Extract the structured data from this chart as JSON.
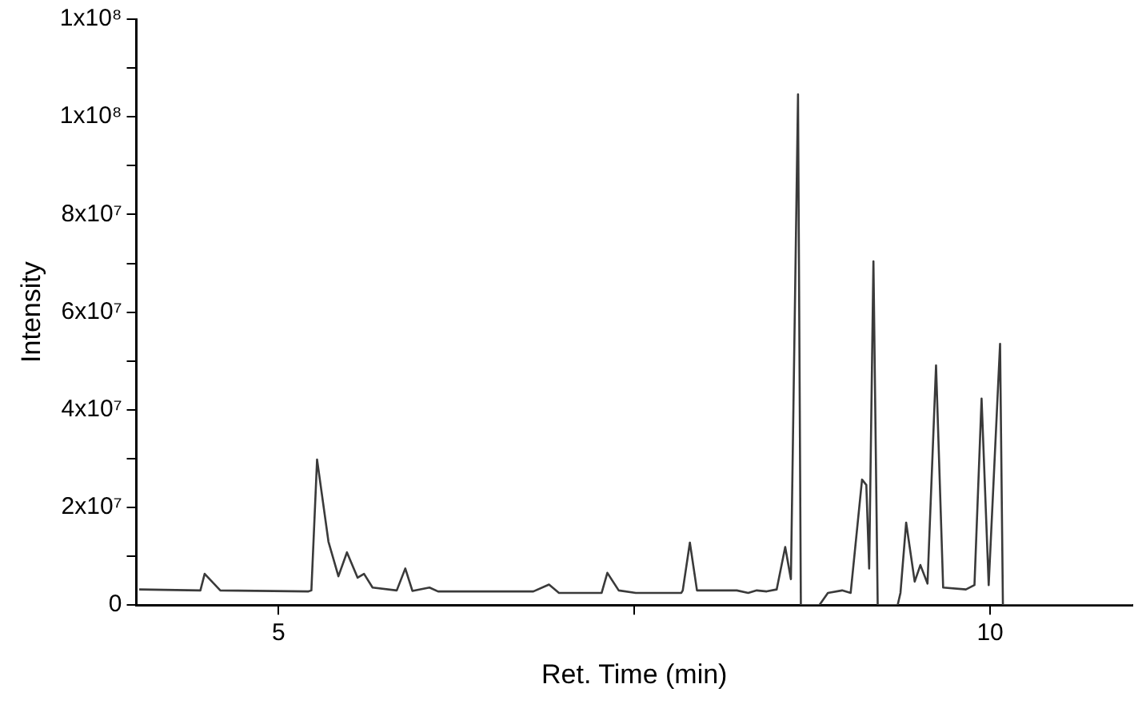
{
  "chart_data": {
    "type": "line",
    "xlabel": "Ret. Time (min)",
    "ylabel": "Intensity",
    "xlim": [
      4,
      11
    ],
    "xticks": [
      5,
      {
        "value": 7.5,
        "label": null
      },
      10
    ],
    "ylim": [
      0,
      120000000
    ],
    "yticks": [
      0,
      {
        "value": 10000000,
        "label": null
      },
      {
        "value": 20000000,
        "label": "2x10⁷"
      },
      {
        "value": 30000000,
        "label": null
      },
      {
        "value": 40000000,
        "label": "4x10⁷"
      },
      {
        "value": 50000000,
        "label": null
      },
      {
        "value": 60000000,
        "label": "6x10⁷"
      },
      {
        "value": 70000000,
        "label": null
      },
      {
        "value": 80000000,
        "label": "8x10⁷"
      },
      {
        "value": 90000000,
        "label": null
      },
      {
        "value": 100000000,
        "label": "1x10⁸"
      },
      {
        "value": 110000000,
        "label": null
      },
      {
        "value": 120000000,
        "label": "1x10⁸"
      }
    ],
    "grid": false,
    "legend": false,
    "marker": "none",
    "line_style": "solid",
    "series": [
      {
        "color": "#3a3a3a",
        "x": [
          4.02,
          4.45,
          4.48,
          4.59,
          5.21,
          5.23,
          5.27,
          5.35,
          5.42,
          5.48,
          5.555,
          5.6,
          5.66,
          5.83,
          5.89,
          5.94,
          6.06,
          6.12,
          6.79,
          6.9,
          6.97,
          7.27,
          7.31,
          7.39,
          7.51,
          7.83,
          7.84,
          7.89,
          7.94,
          8.22,
          8.3,
          8.36,
          8.43,
          8.5,
          8.56,
          8.6,
          8.65,
          8.67,
          8.8,
          8.86,
          8.96,
          9.02,
          9.1,
          9.13,
          9.15,
          9.18,
          9.21,
          9.35,
          9.37,
          9.41,
          9.47,
          9.51,
          9.56,
          9.62,
          9.67,
          9.83,
          9.89,
          9.94,
          9.99,
          10.07,
          10.09,
          11.0
        ],
        "values": [
          3200000,
          3000000,
          6400000,
          3000000,
          2800000,
          3000000,
          29800000,
          13000000,
          5900000,
          10800000,
          5600000,
          6400000,
          3600000,
          3000000,
          7500000,
          2900000,
          3600000,
          2800000,
          2800000,
          4200000,
          2500000,
          2500000,
          6600000,
          3000000,
          2500000,
          2500000,
          3000000,
          12800000,
          3000000,
          3000000,
          2500000,
          3000000,
          2800000,
          3200000,
          11900000,
          5300000,
          104600000,
          0,
          0,
          2500000,
          3000000,
          2500000,
          25700000,
          24600000,
          7500000,
          70400000,
          0,
          0,
          2500000,
          16900000,
          4800000,
          8200000,
          4400000,
          49100000,
          3600000,
          3200000,
          4100000,
          42300000,
          4100000,
          53500000,
          0,
          0
        ]
      }
    ]
  }
}
